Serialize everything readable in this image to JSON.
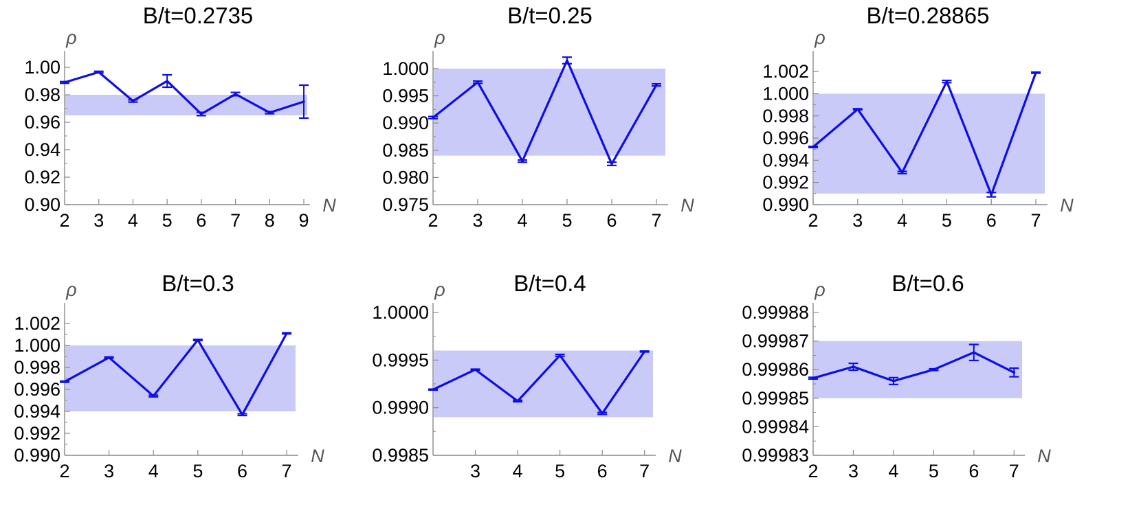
{
  "chart_data": [
    {
      "type": "line",
      "title": "B/t=0.2735",
      "xlabel": "N",
      "ylabel": "ρ",
      "xlim": [
        2,
        9.1
      ],
      "ylim": [
        0.9,
        1.005
      ],
      "xticks": [
        2,
        3,
        4,
        5,
        6,
        7,
        8,
        9
      ],
      "yticks": [
        0.9,
        0.92,
        0.94,
        0.96,
        0.98,
        1.0
      ],
      "ytick_labels": [
        "0.90",
        "0.92",
        "0.94",
        "0.96",
        "0.98",
        "1.00"
      ],
      "xtick_labels": [
        "2",
        "3",
        "4",
        "5",
        "6",
        "7",
        "8",
        "9"
      ],
      "band": [
        0.965,
        0.98
      ],
      "series": [
        {
          "x": [
            2,
            3,
            4,
            5,
            6,
            7,
            8,
            9
          ],
          "y": [
            0.989,
            0.9965,
            0.9755,
            0.99,
            0.966,
            0.9805,
            0.967,
            0.975
          ],
          "err": [
            0.0006,
            0.0006,
            0.0008,
            0.0045,
            0.0012,
            0.0012,
            0.0008,
            0.012
          ]
        }
      ]
    },
    {
      "type": "line",
      "title": "B/t=0.25",
      "xlabel": "N",
      "ylabel": "ρ",
      "xlim": [
        2,
        7.2
      ],
      "ylim": [
        0.975,
        1.0015
      ],
      "xticks": [
        2,
        3,
        4,
        5,
        6,
        7
      ],
      "yticks": [
        0.975,
        0.98,
        0.985,
        0.99,
        0.995,
        1.0
      ],
      "ytick_labels": [
        "0.975",
        "0.980",
        "0.985",
        "0.990",
        "0.995",
        "1.000"
      ],
      "xtick_labels": [
        "2",
        "3",
        "4",
        "5",
        "6",
        "7"
      ],
      "band": [
        0.984,
        1.0
      ],
      "series": [
        {
          "x": [
            2,
            3,
            4,
            5,
            6,
            7
          ],
          "y": [
            0.991,
            0.9975,
            0.983,
            1.0015,
            0.9825,
            0.997
          ],
          "err": [
            0.0002,
            0.0002,
            0.0002,
            0.0006,
            0.0003,
            0.0002
          ]
        }
      ]
    },
    {
      "type": "line",
      "title": "B/t=0.28865",
      "xlabel": "N",
      "ylabel": "ρ",
      "xlim": [
        2,
        7.2
      ],
      "ylim": [
        0.99,
        1.003
      ],
      "xticks": [
        2,
        3,
        4,
        5,
        6,
        7
      ],
      "yticks": [
        0.99,
        0.992,
        0.994,
        0.996,
        0.998,
        1.0,
        1.002
      ],
      "ytick_labels": [
        "0.990",
        "0.992",
        "0.994",
        "0.996",
        "0.998",
        "1.000",
        "1.002"
      ],
      "xtick_labels": [
        "2",
        "3",
        "4",
        "5",
        "6",
        "7"
      ],
      "band": [
        0.991,
        1.0
      ],
      "series": [
        {
          "x": [
            2,
            3,
            4,
            5,
            6,
            7
          ],
          "y": [
            0.9952,
            0.9986,
            0.9929,
            1.0011,
            0.9909,
            1.0019
          ],
          "err": [
            5e-05,
            5e-05,
            0.0001,
            0.0001,
            0.0002,
            5e-05
          ]
        }
      ]
    },
    {
      "type": "line",
      "title": "B/t=0.3",
      "xlabel": "N",
      "ylabel": "ρ",
      "xlim": [
        2,
        7.2
      ],
      "ylim": [
        0.99,
        1.003
      ],
      "xticks": [
        2,
        3,
        4,
        5,
        6,
        7
      ],
      "yticks": [
        0.99,
        0.992,
        0.994,
        0.996,
        0.998,
        1.0,
        1.002
      ],
      "ytick_labels": [
        "0.990",
        "0.992",
        "0.994",
        "0.996",
        "0.998",
        "1.000",
        "1.002"
      ],
      "xtick_labels": [
        "2",
        "3",
        "4",
        "5",
        "6",
        "7"
      ],
      "band": [
        0.994,
        1.0
      ],
      "series": [
        {
          "x": [
            2,
            3,
            4,
            5,
            6,
            7
          ],
          "y": [
            0.9967,
            0.9989,
            0.9954,
            1.0005,
            0.9937,
            1.0011
          ],
          "err": [
            5e-05,
            5e-05,
            8e-05,
            5e-05,
            8e-05,
            5e-05
          ]
        }
      ]
    },
    {
      "type": "line",
      "title": "B/t=0.4",
      "xlabel": "N",
      "ylabel": "ρ",
      "xlim": [
        2,
        7.2
      ],
      "ylim": [
        0.9985,
        1.0
      ],
      "xticks": [
        3,
        4,
        5,
        6,
        7
      ],
      "yticks": [
        0.9985,
        0.999,
        0.9995,
        1.0
      ],
      "ytick_labels": [
        "0.9985",
        "0.9990",
        "0.9995",
        "1.0000"
      ],
      "xtick_labels": [
        "3",
        "4",
        "5",
        "6",
        "7"
      ],
      "band": [
        0.9989,
        0.9996
      ],
      "series": [
        {
          "x": [
            2,
            3,
            4,
            5,
            6,
            7
          ],
          "y": [
            0.99919,
            0.9994,
            0.99907,
            0.99955,
            0.99894,
            0.99959
          ],
          "err": [
            5e-06,
            5e-06,
            8e-06,
            1e-05,
            1e-05,
            5e-06
          ]
        }
      ]
    },
    {
      "type": "line",
      "title": "B/t=0.6",
      "xlabel": "N",
      "ylabel": "ρ",
      "xlim": [
        2,
        7.2
      ],
      "ylim": [
        0.99983,
        0.99988
      ],
      "xticks": [
        2,
        3,
        4,
        5,
        6,
        7
      ],
      "yticks": [
        0.99983,
        0.99984,
        0.99985,
        0.99986,
        0.99987,
        0.99988
      ],
      "ytick_labels": [
        "0.99983",
        "0.99984",
        "0.99985",
        "0.99986",
        "0.99987",
        "0.99988"
      ],
      "xtick_labels": [
        "2",
        "3",
        "4",
        "5",
        "6",
        "7"
      ],
      "band": [
        0.99985,
        0.99987
      ],
      "series": [
        {
          "x": [
            2,
            3,
            4,
            5,
            6,
            7
          ],
          "y": [
            0.999857,
            0.999861,
            0.999856,
            0.99986,
            0.999866,
            0.999859
          ],
          "err": [
            3e-07,
            1.2e-06,
            1.2e-06,
            3e-07,
            2.8e-06,
            1.5e-06
          ]
        }
      ]
    }
  ],
  "colors": {
    "line": "#0d0de6",
    "band": "#c9caf8",
    "axis": "#8a8a8a",
    "axis_label": "#555555"
  }
}
